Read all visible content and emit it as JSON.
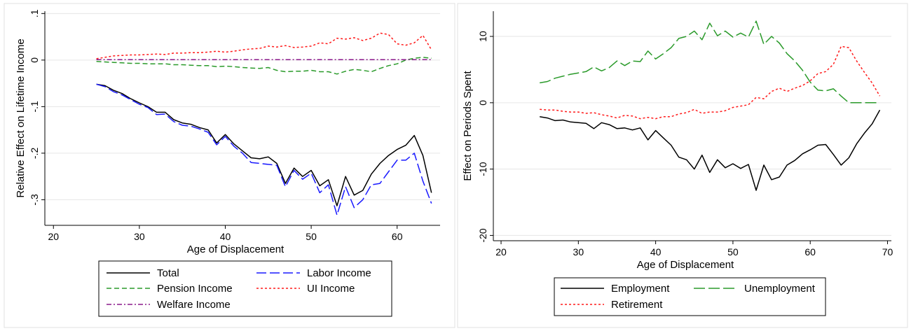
{
  "chart_data": [
    {
      "type": "line",
      "xlabel": "Age of Displacement",
      "ylabel": "Relative Effect on Lifetime Income",
      "xlim": [
        19,
        65
      ],
      "ylim": [
        -0.355,
        0.105
      ],
      "xticks": [
        20,
        30,
        40,
        50,
        60
      ],
      "yticks": [
        0.1,
        0,
        -0.1,
        -0.2,
        -0.3
      ],
      "ytick_labels": [
        ".1",
        "0",
        "-.1",
        "-.2",
        "-.3"
      ],
      "grid": "horizontal",
      "legend_placement": "bottom",
      "x": [
        25,
        26,
        27,
        28,
        29,
        30,
        31,
        32,
        33,
        34,
        35,
        36,
        37,
        38,
        39,
        40,
        41,
        42,
        43,
        44,
        45,
        46,
        47,
        48,
        49,
        50,
        51,
        52,
        53,
        54,
        55,
        56,
        57,
        58,
        59,
        60,
        61,
        62,
        63,
        64
      ],
      "series": [
        {
          "name": "Total",
          "color": "#000000",
          "dash": "",
          "values": [
            -0.052,
            -0.055,
            -0.065,
            -0.072,
            -0.083,
            -0.092,
            -0.1,
            -0.112,
            -0.112,
            -0.128,
            -0.135,
            -0.138,
            -0.145,
            -0.15,
            -0.178,
            -0.16,
            -0.18,
            -0.195,
            -0.21,
            -0.212,
            -0.208,
            -0.222,
            -0.265,
            -0.232,
            -0.25,
            -0.237,
            -0.27,
            -0.257,
            -0.313,
            -0.25,
            -0.29,
            -0.28,
            -0.245,
            -0.222,
            -0.205,
            -0.192,
            -0.183,
            -0.162,
            -0.205,
            -0.285
          ]
        },
        {
          "name": "Labor Income",
          "color": "#1a1aff",
          "dash": "14 5",
          "values": [
            -0.052,
            -0.057,
            -0.068,
            -0.075,
            -0.085,
            -0.095,
            -0.102,
            -0.117,
            -0.116,
            -0.132,
            -0.14,
            -0.142,
            -0.148,
            -0.155,
            -0.182,
            -0.164,
            -0.185,
            -0.2,
            -0.22,
            -0.222,
            -0.224,
            -0.226,
            -0.272,
            -0.237,
            -0.256,
            -0.243,
            -0.285,
            -0.268,
            -0.333,
            -0.272,
            -0.317,
            -0.3,
            -0.268,
            -0.265,
            -0.24,
            -0.215,
            -0.215,
            -0.2,
            -0.26,
            -0.308
          ]
        },
        {
          "name": "Pension Income",
          "color": "#2a9a2a",
          "dash": "7 4",
          "values": [
            -0.003,
            -0.004,
            -0.005,
            -0.006,
            -0.007,
            -0.007,
            -0.008,
            -0.008,
            -0.008,
            -0.01,
            -0.01,
            -0.011,
            -0.012,
            -0.012,
            -0.014,
            -0.013,
            -0.014,
            -0.016,
            -0.017,
            -0.018,
            -0.016,
            -0.022,
            -0.025,
            -0.024,
            -0.024,
            -0.022,
            -0.025,
            -0.025,
            -0.03,
            -0.024,
            -0.02,
            -0.022,
            -0.025,
            -0.018,
            -0.012,
            -0.008,
            0.0,
            0.004,
            0.006,
            0.004
          ]
        },
        {
          "name": "UI Income",
          "color": "#ff1a1a",
          "dash": "3 3",
          "values": [
            0.003,
            0.006,
            0.009,
            0.01,
            0.011,
            0.011,
            0.012,
            0.013,
            0.012,
            0.015,
            0.015,
            0.016,
            0.016,
            0.017,
            0.019,
            0.017,
            0.019,
            0.022,
            0.024,
            0.025,
            0.03,
            0.028,
            0.031,
            0.027,
            0.028,
            0.03,
            0.037,
            0.035,
            0.047,
            0.045,
            0.048,
            0.042,
            0.047,
            0.058,
            0.055,
            0.035,
            0.032,
            0.037,
            0.053,
            0.022
          ]
        },
        {
          "name": "Welfare Income",
          "color": "#8b1a8b",
          "dash": "7 3 2 3",
          "values": [
            0.001,
            0.001,
            0.001,
            0.001,
            0.001,
            0.001,
            0.001,
            0.001,
            0.001,
            0.001,
            0.001,
            0.001,
            0.001,
            0.001,
            0.001,
            0.001,
            0.001,
            0.001,
            0.001,
            0.001,
            0.001,
            0.001,
            0.001,
            0.001,
            0.001,
            0.001,
            0.001,
            0.001,
            0.001,
            0.001,
            0.001,
            0.001,
            0.001,
            0.001,
            0.001,
            0.001,
            0.001,
            0.001,
            0.001,
            0.001
          ]
        }
      ]
    },
    {
      "type": "line",
      "xlabel": "Age of Displacement",
      "ylabel": "Effect on Periods Spent",
      "xlim": [
        19,
        70.5
      ],
      "ylim": [
        -20.8,
        13.8
      ],
      "xticks": [
        20,
        30,
        40,
        50,
        60,
        70
      ],
      "yticks": [
        10,
        0,
        -10,
        -20
      ],
      "ytick_labels": [
        "10",
        "0",
        "-10",
        "-20"
      ],
      "grid": "horizontal",
      "legend_placement": "bottom",
      "x": [
        25,
        26,
        27,
        28,
        29,
        30,
        31,
        32,
        33,
        34,
        35,
        36,
        37,
        38,
        39,
        40,
        41,
        42,
        43,
        44,
        45,
        46,
        47,
        48,
        49,
        50,
        51,
        52,
        53,
        54,
        55,
        56,
        57,
        58,
        59,
        60,
        61,
        62,
        63,
        64,
        65,
        66,
        67,
        68,
        69
      ],
      "series": [
        {
          "name": "Employment",
          "color": "#000000",
          "dash": "",
          "values": [
            -2.1,
            -2.3,
            -2.7,
            -2.6,
            -2.9,
            -3.0,
            -3.1,
            -3.9,
            -3.0,
            -3.3,
            -3.9,
            -3.8,
            -4.1,
            -3.8,
            -5.6,
            -4.2,
            -5.3,
            -6.4,
            -8.2,
            -8.6,
            -10.0,
            -7.9,
            -10.5,
            -8.6,
            -9.8,
            -9.2,
            -9.9,
            -9.3,
            -13.2,
            -9.4,
            -11.6,
            -11.2,
            -9.4,
            -8.7,
            -7.7,
            -7.1,
            -6.4,
            -6.3,
            -7.8,
            -9.4,
            -8.3,
            -6.2,
            -4.6,
            -3.2,
            -1.1
          ]
        },
        {
          "name": "Unemployment",
          "color": "#2a9a2a",
          "dash": "16 5",
          "values": [
            3.0,
            3.2,
            3.7,
            4.0,
            4.3,
            4.5,
            4.7,
            5.4,
            4.8,
            5.3,
            6.3,
            5.6,
            6.3,
            6.2,
            7.8,
            6.6,
            7.4,
            8.3,
            9.7,
            10.0,
            10.8,
            9.5,
            12.0,
            10.1,
            10.8,
            9.9,
            10.5,
            9.9,
            12.3,
            8.8,
            10.0,
            9.0,
            7.4,
            6.3,
            4.9,
            3.1,
            1.9,
            1.8,
            2.1,
            1.0,
            0.0,
            0.0,
            0.0,
            0.0,
            0.0
          ]
        },
        {
          "name": "Retirement",
          "color": "#ff1a1a",
          "dash": "3 3",
          "values": [
            -1.0,
            -1.1,
            -1.1,
            -1.3,
            -1.4,
            -1.4,
            -1.6,
            -1.5,
            -1.8,
            -2.0,
            -2.3,
            -1.9,
            -2.0,
            -2.4,
            -2.2,
            -2.4,
            -2.1,
            -2.1,
            -1.7,
            -1.5,
            -1.0,
            -1.6,
            -1.4,
            -1.4,
            -1.2,
            -0.7,
            -0.5,
            -0.3,
            0.8,
            0.6,
            1.7,
            2.2,
            1.7,
            2.2,
            2.6,
            3.3,
            4.4,
            4.7,
            5.8,
            8.5,
            8.3,
            6.3,
            4.6,
            3.0,
            1.0
          ]
        }
      ]
    }
  ]
}
